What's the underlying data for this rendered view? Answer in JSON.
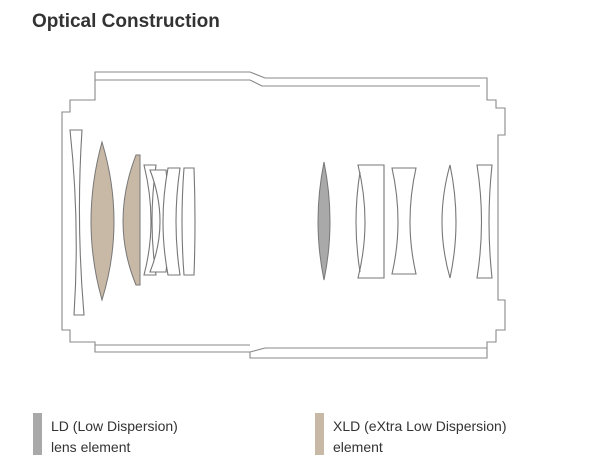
{
  "header": {
    "title": "Optical Construction"
  },
  "legend": [
    {
      "lines": [
        "LD (Low Dispersion)",
        "lens element"
      ],
      "color": "#a9a9a9"
    },
    {
      "lines": [
        "XLD (eXtra Low Dispersion)",
        "element"
      ],
      "color": "#c8b8a6"
    }
  ]
}
